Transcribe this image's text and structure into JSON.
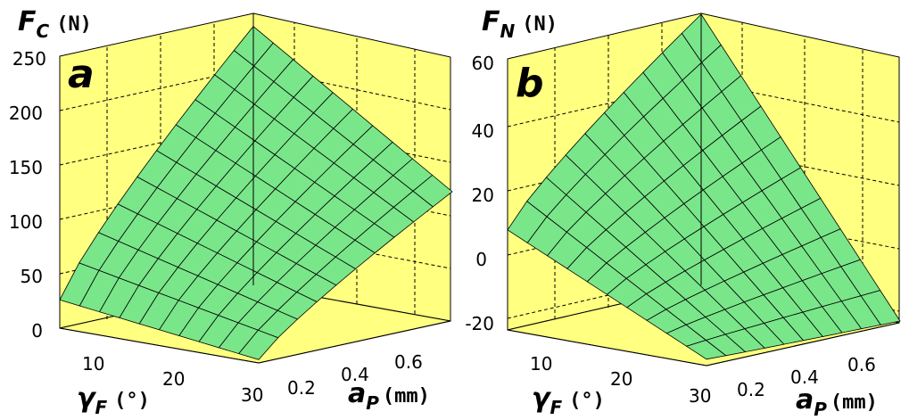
{
  "chart_data": [
    {
      "type": "surface",
      "panel": "a",
      "zlabel": {
        "symbol": "F",
        "sub": "C",
        "unit": "(N)"
      },
      "xlabel": {
        "symbol": "γ",
        "sub": "F",
        "unit": "(°)"
      },
      "ylabel": {
        "symbol": "a",
        "sub": "P",
        "unit": "(mm)"
      },
      "x_ticks": [
        "10",
        "20",
        "30"
      ],
      "y_ticks": [
        "0.2",
        "0.4",
        "0.6"
      ],
      "z_ticks": [
        "0",
        "50",
        "100",
        "150",
        "200",
        "250"
      ],
      "xlim": [
        5,
        30
      ],
      "ylim": [
        0.1,
        0.7
      ],
      "zlim": [
        0,
        250
      ],
      "grid": true,
      "surface_color": "#79e68a",
      "wall_color": "#ffff80",
      "corners": {
        "x_lo_y_lo": 26,
        "x_hi_y_lo": 3,
        "x_lo_y_hi": 238,
        "x_hi_y_hi": 118
      },
      "y_exponent": 0.85,
      "grid_lines": 10
    },
    {
      "type": "surface",
      "panel": "b",
      "zlabel": {
        "symbol": "F",
        "sub": "N",
        "unit": "(N)"
      },
      "xlabel": {
        "symbol": "γ",
        "sub": "F",
        "unit": "(°)"
      },
      "ylabel": {
        "symbol": "a",
        "sub": "P",
        "unit": "(mm)"
      },
      "x_ticks": [
        "10",
        "20",
        "30"
      ],
      "y_ticks": [
        "0.2",
        "0.4",
        "0.6"
      ],
      "z_ticks": [
        "-20",
        "0",
        "20",
        "40",
        "60"
      ],
      "xlim": [
        5,
        30
      ],
      "ylim": [
        0.1,
        0.7
      ],
      "zlim": [
        -22,
        62
      ],
      "grid": true,
      "surface_color": "#79e68a",
      "wall_color": "#ffff80",
      "corners": {
        "x_lo_y_lo": 9,
        "x_hi_y_lo": -20,
        "x_lo_y_hi": 62,
        "x_hi_y_hi": -22
      },
      "y_exponent": 0.85,
      "grid_lines": 10
    }
  ]
}
